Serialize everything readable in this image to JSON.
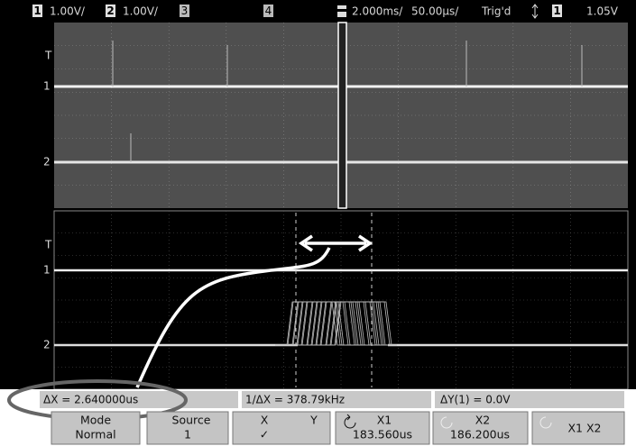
{
  "top_bar": {
    "ch1_label": "1",
    "ch1_scale": "1.00V/",
    "ch2_label": "2",
    "ch2_scale": "1.00V/",
    "ch3_label": "3",
    "ch4_label": "4",
    "timebase": "2.000ms/",
    "zoom_timebase": "50.00µs/",
    "trigger_status": "Trig'd",
    "trigger_source": "1",
    "trigger_level": "1.05V"
  },
  "upper_panel": {
    "markers": [
      "T",
      "1",
      "2"
    ]
  },
  "lower_panel": {
    "markers": [
      "T",
      "1",
      "2"
    ]
  },
  "measurements": {
    "delta_x": "ΔX = 2.640000us",
    "inverse_delta_x": "1/ΔX = 378.79kHz",
    "delta_y": "ΔY(1) = 0.0V"
  },
  "softkeys": [
    {
      "title": "Mode",
      "value": "Normal"
    },
    {
      "title": "Source",
      "value": "1"
    },
    {
      "title": "X",
      "second": "Y",
      "value": "✓"
    },
    {
      "title": "X1",
      "value": "183.560us"
    },
    {
      "title": "X2",
      "value": "186.200us"
    },
    {
      "title": "X1 X2"
    }
  ]
}
